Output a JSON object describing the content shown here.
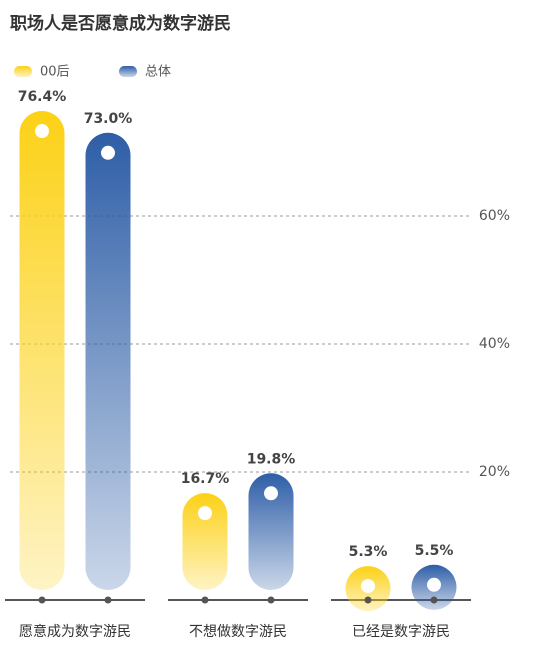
{
  "chart_data": {
    "type": "bar",
    "title": "职场人是否愿意成为数字游民",
    "categories": [
      "愿意成为数字游民",
      "不想做数字游民",
      "已经是数字游民"
    ],
    "series": [
      {
        "name": "00后",
        "color": "#fcd116",
        "values": [
          76.4,
          16.7,
          5.3
        ],
        "value_labels": [
          "76.4%",
          "16.7%",
          "5.3%"
        ]
      },
      {
        "name": "总体",
        "color": "#2e5ea7",
        "values": [
          73.0,
          19.8,
          5.5
        ],
        "value_labels": [
          "73.0%",
          "19.8%",
          "5.5%"
        ]
      }
    ],
    "ylim": [
      0,
      90
    ],
    "yticks": [
      {
        "value": 20,
        "label": "20%"
      },
      {
        "value": 40,
        "label": "40%"
      },
      {
        "value": 60,
        "label": "60%"
      }
    ],
    "grid": true
  }
}
